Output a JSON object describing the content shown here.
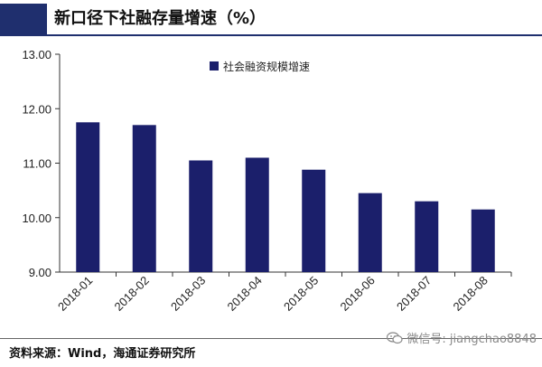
{
  "header": {
    "title": "新口径下社融存量增速（%）"
  },
  "footer": {
    "source": "资料来源：Wind，海通证券研究所"
  },
  "watermark": {
    "text": "微信号: jiangchao8848",
    "icon": "wechat-icon"
  },
  "colors": {
    "bar": "#1b1f6b",
    "accent": "#1f2f6e"
  },
  "chart_data": {
    "type": "bar",
    "title": "",
    "xlabel": "",
    "ylabel": "",
    "categories": [
      "2018-01",
      "2018-02",
      "2018-03",
      "2018-04",
      "2018-05",
      "2018-06",
      "2018-07",
      "2018-08"
    ],
    "series": [
      {
        "name": "社会融资规模增速",
        "values": [
          11.75,
          11.7,
          11.05,
          11.1,
          10.88,
          10.45,
          10.3,
          10.15
        ]
      }
    ],
    "ylim": [
      9.0,
      13.0
    ],
    "yticks": [
      "9.00",
      "10.00",
      "11.00",
      "12.00",
      "13.00"
    ],
    "grid": false,
    "legend": "top-left"
  }
}
